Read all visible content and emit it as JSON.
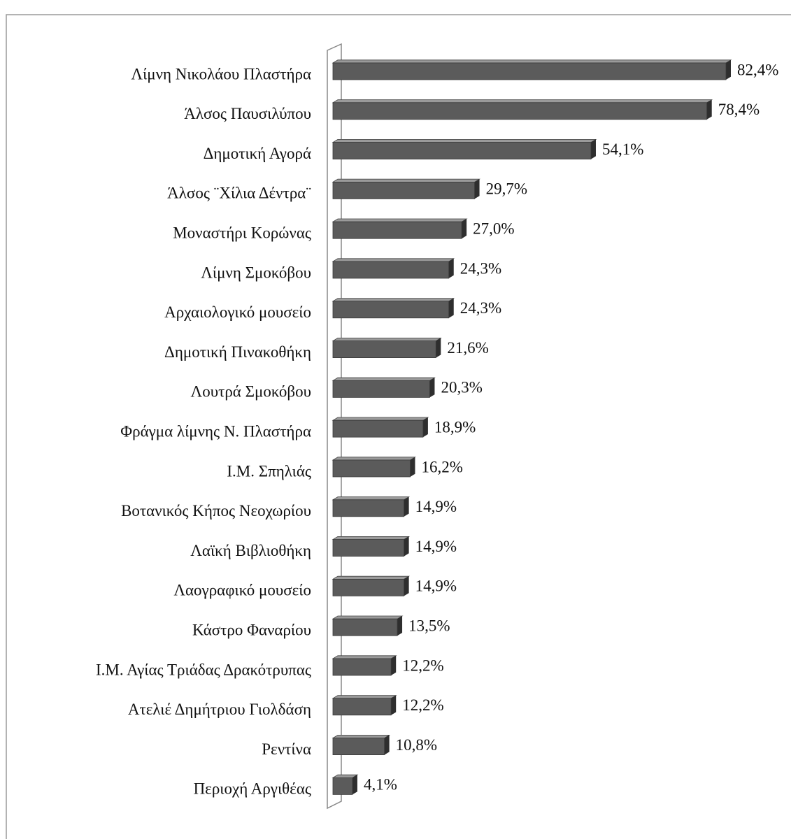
{
  "chart_data": {
    "type": "bar",
    "orientation": "horizontal",
    "color": "#5b5b5b",
    "categories": [
      "Λίμνη Νικολάου Πλαστήρα",
      "Άλσος Παυσιλύπου",
      "Δημοτική Αγορά",
      "Άλσος ¨Χίλια Δέντρα¨",
      "Μοναστήρι Κορώνας",
      "Λίμνη Σμοκόβου",
      "Αρχαιολογικό μουσείο",
      "Δημοτική Πινακοθήκη",
      "Λουτρά Σμοκόβου",
      "Φράγμα λίμνης Ν. Πλαστήρα",
      "Ι.Μ. Σπηλιάς",
      "Βοτανικός Κήπος Νεοχωρίου",
      "Λαϊκή Βιβλιοθήκη",
      "Λαογραφικό μουσείο",
      "Κάστρο Φαναρίου",
      "Ι.Μ. Αγίας Τριάδας Δρακότρυπας",
      "Ατελιέ Δημήτριου Γιολδάση",
      "Ρεντίνα",
      "Περιοχή Αργιθέας"
    ],
    "values": [
      82.4,
      78.4,
      54.1,
      29.7,
      27.0,
      24.3,
      24.3,
      21.6,
      20.3,
      18.9,
      16.2,
      14.9,
      14.9,
      14.9,
      13.5,
      12.2,
      12.2,
      10.8,
      4.1
    ],
    "value_labels": [
      "82,4%",
      "78,4%",
      "54,1%",
      "29,7%",
      "27,0%",
      "24,3%",
      "24,3%",
      "21,6%",
      "20,3%",
      "18,9%",
      "16,2%",
      "14,9%",
      "14,9%",
      "14,9%",
      "13,5%",
      "12,2%",
      "12,2%",
      "10,8%",
      "4,1%"
    ]
  }
}
